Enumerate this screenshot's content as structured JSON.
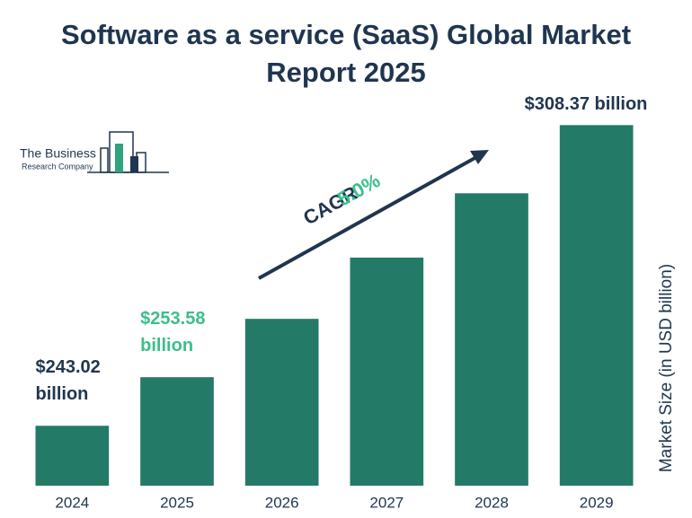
{
  "chart_data": {
    "type": "bar",
    "title": "Software as a service (SaaS) Global Market Report 2025",
    "categories": [
      "2024",
      "2025",
      "2026",
      "2027",
      "2028",
      "2029"
    ],
    "values": [
      243.02,
      253.58,
      266.26,
      279.57,
      293.55,
      308.37
    ],
    "value_labels": [
      "$243.02 billion",
      "$253.58 billion",
      null,
      null,
      null,
      "$308.37 billion"
    ],
    "label_colors": [
      "#1f3550",
      "#3bbf8a",
      "#1f3550",
      "#1f3550",
      "#1f3550",
      "#1f3550"
    ],
    "color": "#237a67",
    "ylim": [
      230,
      310
    ],
    "y_label": "Market Size (in USD billion)",
    "annotation": {
      "text": "CAGR",
      "value": "5.0%"
    },
    "logo": {
      "line1": "The Business",
      "line2": "Research Company"
    }
  }
}
